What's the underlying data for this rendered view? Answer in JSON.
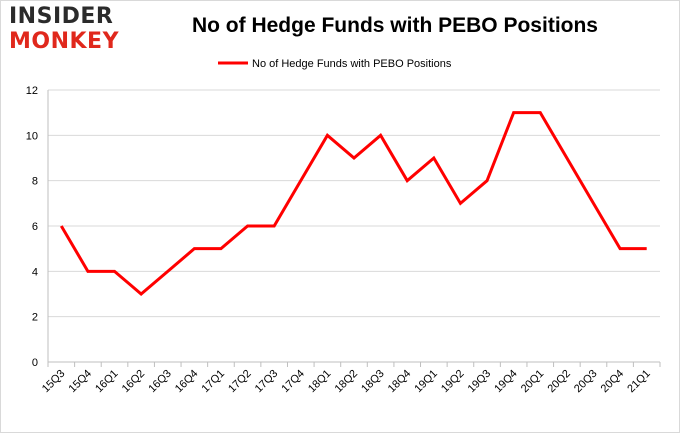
{
  "brand": {
    "line1": "INSIDER",
    "line2": "MONKEY"
  },
  "chart_data": {
    "type": "line",
    "title": "No of Hedge Funds with PEBO Positions",
    "xlabel": "",
    "ylabel": "",
    "categories": [
      "15Q3",
      "15Q4",
      "16Q1",
      "16Q2",
      "16Q3",
      "16Q4",
      "17Q1",
      "17Q2",
      "17Q3",
      "17Q4",
      "18Q1",
      "18Q2",
      "18Q3",
      "18Q4",
      "19Q1",
      "19Q2",
      "19Q3",
      "19Q4",
      "20Q1",
      "20Q2",
      "20Q3",
      "20Q4",
      "21Q1"
    ],
    "series": [
      {
        "name": "No of Hedge Funds with PEBO Positions",
        "color": "#ff0000",
        "values": [
          6,
          4,
          4,
          3,
          4,
          5,
          5,
          6,
          6,
          8,
          10,
          9,
          10,
          8,
          9,
          7,
          8,
          11,
          11,
          9,
          7,
          5,
          5
        ]
      }
    ],
    "ylim": [
      0,
      12
    ],
    "yticks": [
      0,
      2,
      4,
      6,
      8,
      10,
      12
    ],
    "grid": true,
    "legend": "top-center"
  }
}
